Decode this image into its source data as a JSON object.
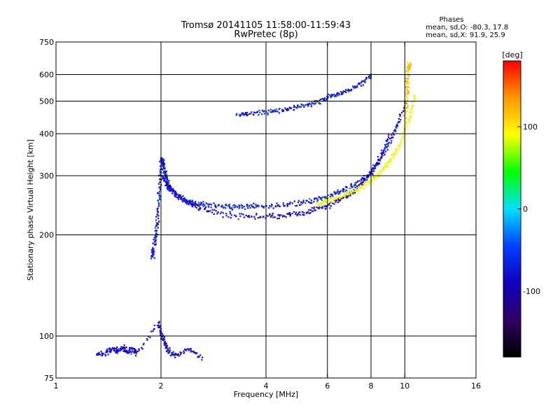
{
  "chart_data": {
    "type": "scatter",
    "title": "Tromsø 20141105 11:58:00-11:59:43",
    "subtitle": "RwPretec (8p)",
    "xlabel": "Frequency [MHz]",
    "ylabel": "Stationary phase Virtual Height [km]",
    "x_scale": "log",
    "y_scale": "log",
    "xlim": [
      1,
      16
    ],
    "ylim": [
      75,
      750
    ],
    "x_ticks": [
      1,
      2,
      4,
      6,
      8,
      10,
      16
    ],
    "x_tick_labels": [
      "1",
      "2",
      "4",
      "6",
      "8",
      "10",
      "16"
    ],
    "y_ticks": [
      75,
      100,
      200,
      300,
      400,
      500,
      600,
      750
    ],
    "y_tick_labels": [
      "75",
      "100",
      "200",
      "300",
      "400",
      "500",
      "600",
      "750"
    ],
    "grid_x": [
      2,
      4,
      6,
      8,
      10
    ],
    "grid_y": [
      100,
      200,
      300,
      400,
      500,
      600
    ],
    "stats": {
      "heading": "Phases",
      "line_o": "mean, sd,O: -80.3, 17.8",
      "line_x": "mean, sd,X:  91.9, 25.9"
    },
    "colorbar": {
      "label": "[deg]",
      "range": [
        -180,
        180
      ],
      "ticks": [
        100,
        0,
        -100
      ],
      "tick_labels": [
        "100",
        "0",
        "-100"
      ],
      "colors": [
        "#ff0000",
        "#ff9900",
        "#ffff00",
        "#00ff00",
        "#00e0ff",
        "#0040ff",
        "#1000c0",
        "#300060",
        "#000000"
      ]
    },
    "series": [
      {
        "x": [
          1.88,
          1.9,
          1.92,
          1.94,
          1.96,
          1.98,
          2.0,
          2.02,
          2.04,
          2.06,
          2.08,
          2.1,
          2.14,
          2.2,
          2.3,
          2.4,
          2.5,
          2.7,
          3.0,
          3.3,
          3.6,
          4.0,
          4.5,
          5.0,
          5.5,
          6.0,
          6.5,
          7.0,
          7.5,
          8.0,
          8.5,
          9.0,
          9.5,
          10.0
        ],
        "y": [
          172,
          185,
          200,
          220,
          250,
          290,
          340,
          330,
          310,
          295,
          285,
          278,
          272,
          265,
          258,
          253,
          250,
          247,
          245,
          244,
          244,
          245,
          247,
          251,
          256,
          262,
          270,
          280,
          292,
          310,
          340,
          380,
          430,
          500
        ],
        "phase_deg": -100
      },
      {
        "x": [
          2.0,
          2.1,
          2.2,
          2.4,
          2.6,
          3.0,
          3.5,
          4.0,
          4.5,
          5.0,
          5.5,
          6.0,
          6.5,
          7.0,
          7.5,
          8.0,
          8.5,
          9.0
        ],
        "y": [
          300,
          280,
          265,
          250,
          240,
          232,
          228,
          228,
          230,
          233,
          238,
          245,
          255,
          268,
          285,
          310,
          345,
          400
        ],
        "phase_deg": -110
      },
      {
        "x": [
          5.6,
          6.0,
          6.5,
          7.0,
          7.5,
          8.0,
          8.5,
          9.0,
          9.5,
          10.0,
          10.3,
          10.6
        ],
        "y": [
          250,
          255,
          262,
          270,
          280,
          292,
          310,
          335,
          365,
          410,
          460,
          520
        ],
        "phase_deg": 90
      },
      {
        "x": [
          3.3,
          3.6,
          4.0,
          4.4,
          4.8,
          5.2,
          5.6,
          6.0,
          6.5,
          7.0,
          7.5,
          8.0
        ],
        "y": [
          460,
          462,
          466,
          472,
          480,
          490,
          500,
          515,
          530,
          548,
          568,
          600
        ],
        "phase_deg": -100
      },
      {
        "x": [
          10.0,
          10.05,
          10.1,
          10.15,
          10.2,
          10.25
        ],
        "y": [
          450,
          500,
          550,
          600,
          630,
          650
        ],
        "phase_deg": 120
      },
      {
        "x": [
          1.3,
          1.4,
          1.45,
          1.5,
          1.55,
          1.6,
          1.65,
          1.7,
          1.95,
          2.0,
          2.05,
          2.1,
          2.2,
          2.4,
          2.6
        ],
        "y": [
          88,
          90,
          92,
          91,
          93,
          90,
          92,
          89,
          110,
          100,
          95,
          90,
          88,
          92,
          87
        ],
        "phase_deg": -110
      }
    ]
  }
}
